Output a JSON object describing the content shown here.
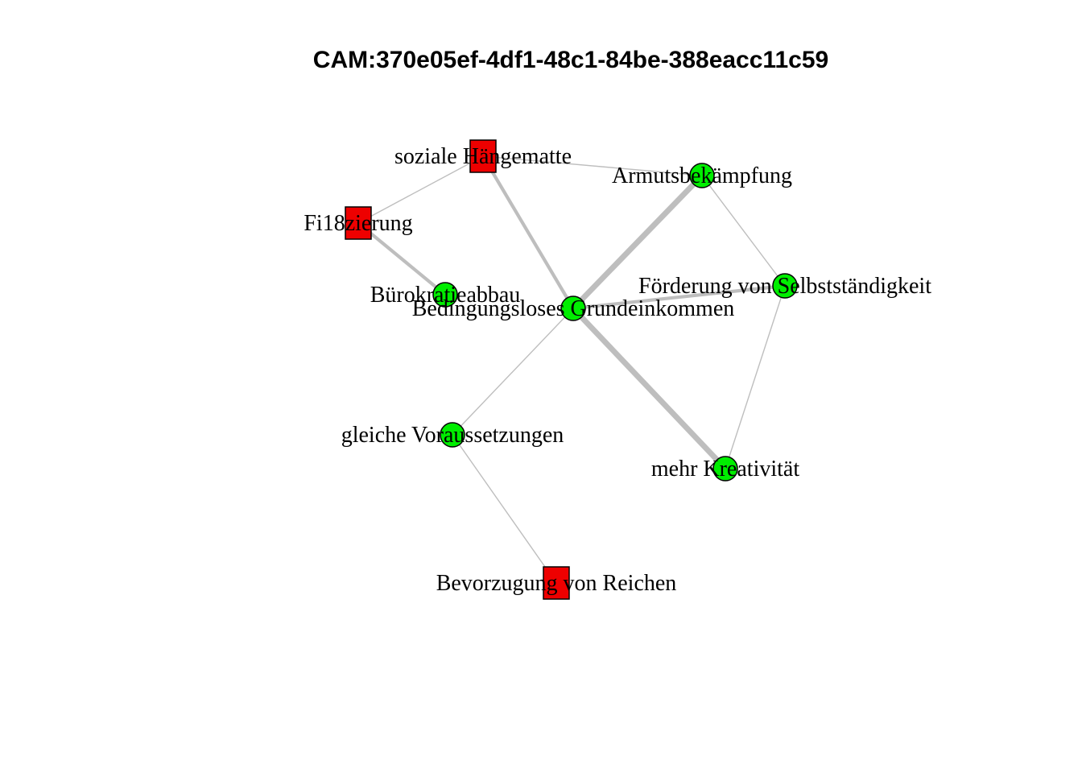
{
  "title": "CAM:370e05ef-4df1-48c1-84be-388eacc11c59",
  "colors": {
    "positive": "#00ee00",
    "negative": "#ee0000",
    "edge": "#bebebe",
    "outline": "#000000"
  },
  "nodes": [
    {
      "id": "bge",
      "label": "Bedingungsloses Grundeinkommen",
      "shape": "circle",
      "valence": "positive"
    },
    {
      "id": "sh",
      "label": "soziale Hängematte",
      "shape": "square",
      "valence": "negative"
    },
    {
      "id": "arm",
      "label": "Armutsbekämpfung",
      "shape": "circle",
      "valence": "positive"
    },
    {
      "id": "fin",
      "label": "Fi18zierung",
      "shape": "square",
      "valence": "negative"
    },
    {
      "id": "buero",
      "label": "Bürokratieabbau",
      "shape": "circle",
      "valence": "positive"
    },
    {
      "id": "selb",
      "label": "Förderung von Selbstständigkeit",
      "shape": "circle",
      "valence": "positive"
    },
    {
      "id": "gv",
      "label": "gleiche Voraussetzungen",
      "shape": "circle",
      "valence": "positive"
    },
    {
      "id": "krea",
      "label": "mehr Kreativität",
      "shape": "circle",
      "valence": "positive"
    },
    {
      "id": "reich",
      "label": "Bevorzugung von Reichen",
      "shape": "square",
      "valence": "negative"
    }
  ],
  "edges": [
    {
      "from": "sh",
      "to": "fin",
      "weight": 1
    },
    {
      "from": "sh",
      "to": "arm",
      "weight": 1
    },
    {
      "from": "sh",
      "to": "bge",
      "weight": 3
    },
    {
      "from": "fin",
      "to": "buero",
      "weight": 3
    },
    {
      "from": "arm",
      "to": "bge",
      "weight": 5
    },
    {
      "from": "arm",
      "to": "selb",
      "weight": 1
    },
    {
      "from": "bge",
      "to": "selb",
      "weight": 3
    },
    {
      "from": "bge",
      "to": "krea",
      "weight": 5
    },
    {
      "from": "bge",
      "to": "gv",
      "weight": 1
    },
    {
      "from": "selb",
      "to": "krea",
      "weight": 1
    },
    {
      "from": "gv",
      "to": "reich",
      "weight": 1
    }
  ]
}
